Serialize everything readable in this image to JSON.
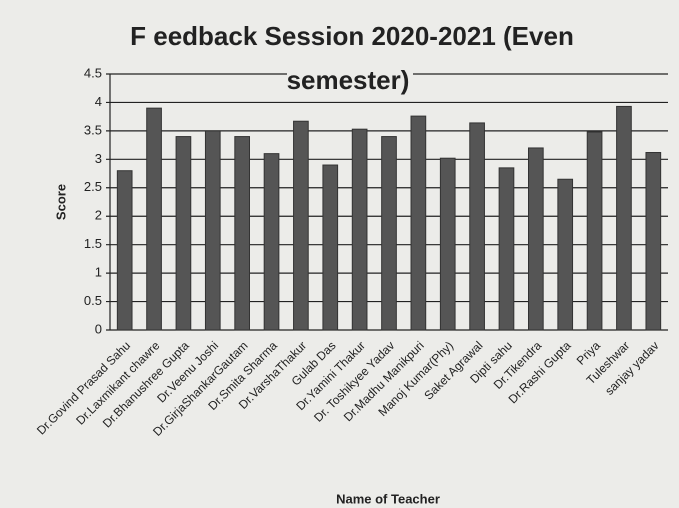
{
  "chart_data": {
    "type": "bar",
    "title": "F eedback Session 2020-2021 (Even semester)",
    "x_label": "Name of Teacher",
    "y_label": "Score",
    "categories": [
      "Dr.Govind Prasad Sahu",
      "Dr.Laxmikant chawre",
      "Dr.Bhanushree Gupta",
      "Dr.Veenu Joshi",
      "Dr.GirjaShankarGautam",
      "Dr.Smita Sharma",
      "Dr.VarshaThakur",
      "Gulab Das",
      "Dr.Yamini Thakur",
      "Dr. Toshikyee Yadav",
      "Dr.Madhu Manikpuri",
      "Manoj Kumar(Phy)",
      "Saket Agrawal",
      "Dipti sahu",
      "Dr.Tikendra",
      "Dr.Rashi Gupta",
      "Priya",
      "Tuleshwar",
      "sanjay yadav"
    ],
    "values": [
      2.8,
      3.9,
      3.4,
      3.5,
      3.4,
      3.1,
      3.67,
      2.9,
      3.53,
      3.4,
      3.76,
      3.02,
      3.64,
      2.85,
      3.2,
      2.65,
      3.48,
      3.93,
      3.12
    ],
    "color": "#555555",
    "ylim": [
      0,
      4.5
    ],
    "yticks": [
      0,
      0.5,
      1,
      1.5,
      2,
      2.5,
      3,
      3.5,
      4,
      4.5
    ],
    "grid": true
  }
}
